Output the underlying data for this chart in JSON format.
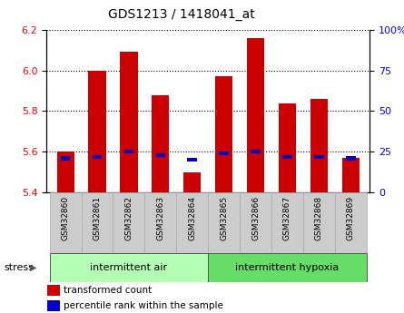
{
  "title": "GDS1213 / 1418041_at",
  "samples": [
    "GSM32860",
    "GSM32861",
    "GSM32862",
    "GSM32863",
    "GSM32864",
    "GSM32865",
    "GSM32866",
    "GSM32867",
    "GSM32868",
    "GSM32869"
  ],
  "transformed_count": [
    5.6,
    6.0,
    6.09,
    5.88,
    5.5,
    5.97,
    6.16,
    5.84,
    5.86,
    5.57
  ],
  "percentile_rank": [
    21,
    22,
    25,
    23,
    20,
    24,
    25,
    22,
    22,
    21
  ],
  "ylim_left": [
    5.4,
    6.2
  ],
  "ylim_right": [
    0,
    100
  ],
  "yticks_left": [
    5.4,
    5.6,
    5.8,
    6.0,
    6.2
  ],
  "yticks_right": [
    0,
    25,
    50,
    75,
    100
  ],
  "ytick_labels_right": [
    "0",
    "25",
    "50",
    "75",
    "100%"
  ],
  "groups": [
    {
      "label": "intermittent air",
      "start": 0,
      "end": 5,
      "color": "#b3ffb3"
    },
    {
      "label": "intermittent hypoxia",
      "start": 5,
      "end": 10,
      "color": "#66dd66"
    }
  ],
  "bar_color_red": "#cc0000",
  "bar_color_blue": "#0000cc",
  "bar_width": 0.55,
  "tick_bg_color": "#cccccc",
  "base_value": 5.4,
  "figsize": [
    4.45,
    3.45
  ],
  "dpi": 100
}
